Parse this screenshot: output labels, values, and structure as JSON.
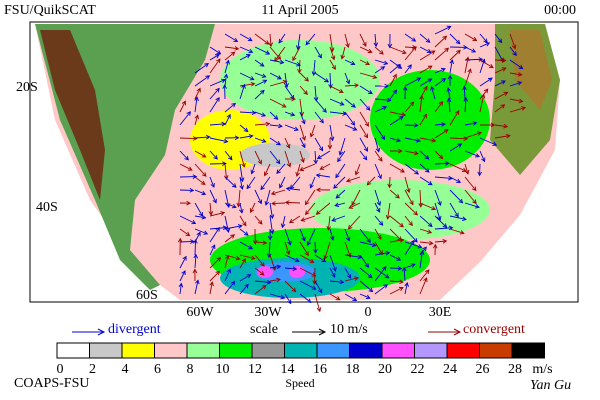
{
  "header": {
    "left": "FSU/QuikSCAT",
    "center": "11 April 2005",
    "right": "00:00"
  },
  "map": {
    "lat_labels": [
      "20S",
      "40S",
      "60S"
    ],
    "lon_labels": [
      "60W",
      "30W",
      "0",
      "30E"
    ]
  },
  "legend": {
    "divergent": "divergent",
    "scale": "scale",
    "scale_value": "10 m/s",
    "convergent": "convergent"
  },
  "colorbar": {
    "colors": [
      "#ffffff",
      "#c8c8c8",
      "#ffff00",
      "#ffc8c8",
      "#96ff96",
      "#00ee00",
      "#969696",
      "#00b4b4",
      "#3c96ff",
      "#0000cd",
      "#ff50ff",
      "#b496ff",
      "#ff0000",
      "#c83c00",
      "#000000"
    ],
    "ticks": [
      "0",
      "2",
      "4",
      "6",
      "8",
      "10",
      "12",
      "14",
      "16",
      "18",
      "20",
      "22",
      "24",
      "26",
      "28"
    ],
    "unit": "m/s",
    "label": "Speed"
  },
  "footer": {
    "left": "COAPS-FSU",
    "right": "Yan Gu"
  }
}
